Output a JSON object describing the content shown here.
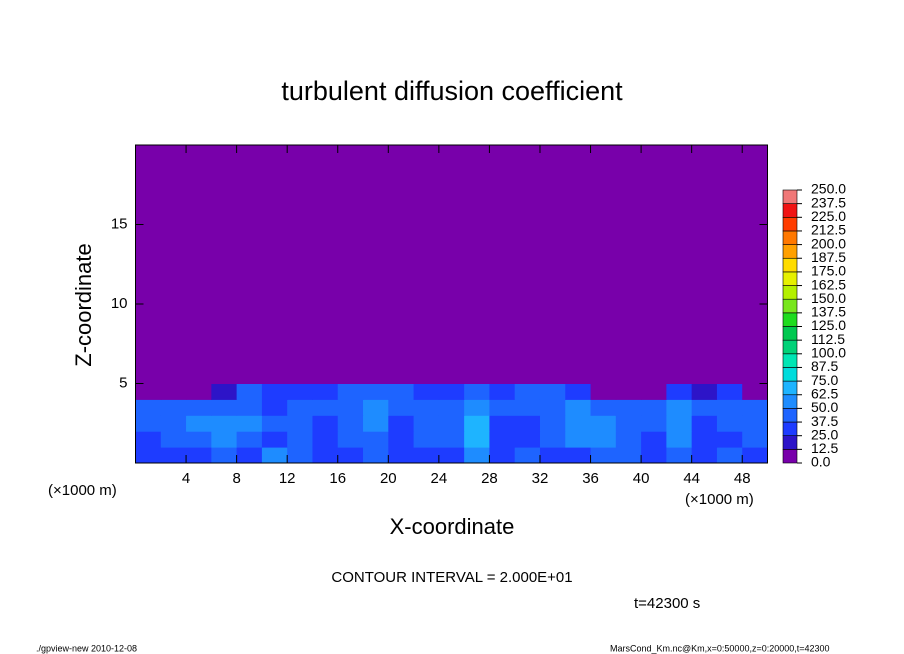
{
  "chart_data": {
    "type": "contour",
    "title": "turbulent diffusion coefficient",
    "x_label": "X-coordinate",
    "y_label": "Z-coordinate",
    "x_unit_left": "(×1000 m)",
    "x_unit_right": "(×1000 m)",
    "contour_interval": "CONTOUR INTERVAL = 2.000E+01",
    "time_label": "t=42300 s",
    "footer_left": "./gpview-new  2010-12-08",
    "footer_right": "MarsCond_Km.nc@Km,x=0:50000,z=0:20000,t=42300",
    "xlim": [
      0,
      50
    ],
    "ylim": [
      0,
      20
    ],
    "xticks": [
      4,
      8,
      12,
      16,
      20,
      24,
      28,
      32,
      36,
      40,
      44,
      48
    ],
    "yticks": [
      5,
      10,
      15
    ],
    "x_edges": [
      0,
      2,
      4,
      6,
      8,
      10,
      12,
      14,
      16,
      18,
      20,
      22,
      24,
      26,
      28,
      30,
      32,
      34,
      36,
      38,
      40,
      42,
      44,
      46,
      48,
      50
    ],
    "y_edges": [
      0,
      1,
      2,
      3,
      4,
      5,
      20
    ],
    "z": [
      [
        30,
        30,
        35,
        40,
        30,
        55,
        40,
        30,
        35,
        40,
        35,
        30,
        35,
        60,
        30,
        40,
        35,
        30,
        45,
        40,
        35,
        45,
        30,
        40,
        35
      ],
      [
        35,
        40,
        45,
        60,
        40,
        35,
        40,
        30,
        40,
        45,
        30,
        40,
        45,
        65,
        35,
        30,
        40,
        50,
        60,
        40,
        35,
        50,
        30,
        35,
        40
      ],
      [
        40,
        45,
        50,
        55,
        60,
        40,
        45,
        35,
        40,
        55,
        35,
        45,
        40,
        65,
        30,
        35,
        45,
        60,
        55,
        45,
        40,
        55,
        35,
        40,
        45
      ],
      [
        45,
        40,
        45,
        40,
        45,
        35,
        40,
        40,
        45,
        60,
        40,
        45,
        45,
        60,
        40,
        45,
        45,
        55,
        45,
        40,
        40,
        60,
        45,
        40,
        40
      ],
      [
        5,
        5,
        5,
        20,
        40,
        35,
        30,
        30,
        40,
        40,
        40,
        30,
        35,
        40,
        35,
        40,
        40,
        30,
        10,
        10,
        10,
        35,
        20,
        30,
        5
      ],
      [
        5,
        5,
        5,
        5,
        5,
        5,
        5,
        5,
        5,
        5,
        5,
        5,
        5,
        5,
        5,
        5,
        5,
        5,
        5,
        5,
        5,
        5,
        5,
        5,
        5
      ]
    ],
    "levels": [
      {
        "value": 0,
        "label": "0.0"
      },
      {
        "value": 12.5,
        "label": "12.5"
      },
      {
        "value": 25,
        "label": "25.0"
      },
      {
        "value": 37.5,
        "label": "37.5"
      },
      {
        "value": 50,
        "label": "50.0"
      },
      {
        "value": 62.5,
        "label": "62.5"
      },
      {
        "value": 75,
        "label": "75.0"
      },
      {
        "value": 87.5,
        "label": "87.5"
      },
      {
        "value": 100,
        "label": "100.0"
      },
      {
        "value": 112.5,
        "label": "112.5"
      },
      {
        "value": 125,
        "label": "125.0"
      },
      {
        "value": 137.5,
        "label": "137.5"
      },
      {
        "value": 150,
        "label": "150.0"
      },
      {
        "value": 162.5,
        "label": "162.5"
      },
      {
        "value": 175,
        "label": "175.0"
      },
      {
        "value": 187.5,
        "label": "187.5"
      },
      {
        "value": 200,
        "label": "200.0"
      },
      {
        "value": 212.5,
        "label": "212.5"
      },
      {
        "value": 225,
        "label": "225.0"
      },
      {
        "value": 237.5,
        "label": "237.5"
      },
      {
        "value": 250,
        "label": "250.0"
      }
    ],
    "colors": [
      "#7800aa",
      "#2d14c8",
      "#1e3cff",
      "#1e64ff",
      "#1e8cff",
      "#1eb4ff",
      "#00dcdc",
      "#00e6b4",
      "#00d278",
      "#00c850",
      "#1edc1e",
      "#78e61e",
      "#b4f000",
      "#e6f000",
      "#ffdc00",
      "#ffa000",
      "#ff7800",
      "#ff3c00",
      "#f01414",
      "#f07878"
    ]
  }
}
